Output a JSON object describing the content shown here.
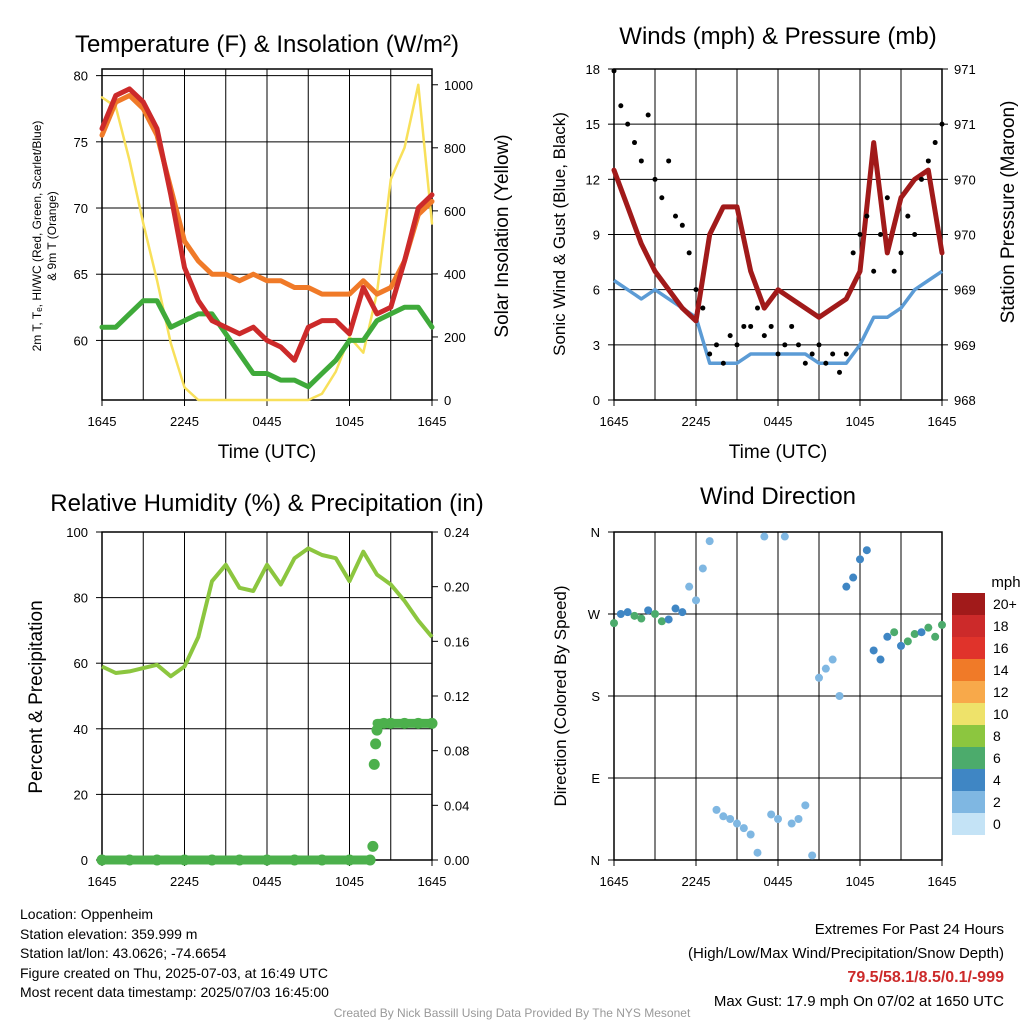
{
  "panels": {
    "temperature": {
      "title": "Temperature (F) & Insolation (W/m²)",
      "ylabel_left_line1": "2m T, Tₑ, HI/WC (Red, Green, Scarlet/Blue)",
      "ylabel_left_line2": "& 9m T (Orange)",
      "ylabel_right": "Solar Insolation (Yellow)",
      "xlabel": "Time (UTC)"
    },
    "winds": {
      "title": "Winds (mph) & Pressure (mb)",
      "ylabel_left": "Sonic Wind & Gust (Blue, Black)",
      "ylabel_right": "Station Pressure (Maroon)",
      "xlabel": "Time (UTC)"
    },
    "humidity": {
      "title": "Relative Humidity (%) & Precipitation (in)",
      "ylabel_left": "Percent & Precipitation"
    },
    "direction": {
      "title": "Wind Direction",
      "ylabel_left": "Direction (Colored By Speed)",
      "legend_title": "mph"
    }
  },
  "info": {
    "location": "Location: Oppenheim",
    "elevation": "Station elevation: 359.999 m",
    "latlon": "Station lat/lon: 43.0626; -74.6654",
    "created": "Figure created on Thu, 2025-07-03, at 16:49 UTC",
    "recent": "Most recent data timestamp: 2025/07/03 16:45:00"
  },
  "extremes": {
    "title": "Extremes For Past 24 Hours",
    "subtitle": "(High/Low/Max Wind/Precipitation/Snow Depth)",
    "values": "79.5/58.1/8.5/0.1/-999",
    "gust": "Max Gust: 17.9 mph On 07/02 at 1650 UTC"
  },
  "credit": "Created By Nick Bassill Using Data Provided By The NYS Mesonet",
  "colors": {
    "temp_2m": "#cc2a2a",
    "temp_9m": "#f07a28",
    "dewpoint": "#3faa3a",
    "insolation": "#f8e05a",
    "wind": "#5b9bd5",
    "gust": "#000000",
    "pressure": "#a11a1a",
    "humidity": "#8cc63f",
    "precip": "#4cb04c"
  },
  "chart_data": [
    {
      "id": "temperature",
      "type": "line",
      "x_ticks": [
        "1645",
        "2245",
        "0445",
        "1045",
        "1645"
      ],
      "x_range_hours": [
        0,
        24
      ],
      "y_ticks_left": [
        60,
        65,
        70,
        75,
        80
      ],
      "ylim_left": [
        55.5,
        80.5
      ],
      "y_ticks_right": [
        0,
        200,
        400,
        600,
        800,
        1000
      ],
      "ylim_right": [
        0,
        1050
      ],
      "series": [
        {
          "name": "T 2m",
          "axis": "left",
          "color": "#cc2a2a",
          "x": [
            0,
            1,
            2,
            3,
            4,
            5,
            6,
            7,
            8,
            9,
            10,
            11,
            12,
            13,
            14,
            15,
            16,
            17,
            18,
            19,
            20,
            21,
            22,
            23,
            24
          ],
          "values": [
            76,
            78.5,
            79,
            78,
            76,
            71,
            65.5,
            63,
            61.5,
            61,
            60.5,
            61,
            60,
            59.5,
            58.5,
            61,
            61.5,
            61.5,
            60.5,
            64,
            62,
            62.5,
            66,
            70,
            71
          ]
        },
        {
          "name": "T 9m",
          "axis": "left",
          "color": "#f07a28",
          "x": [
            0,
            1,
            2,
            3,
            4,
            5,
            6,
            7,
            8,
            9,
            10,
            11,
            12,
            13,
            14,
            15,
            16,
            17,
            18,
            19,
            20,
            21,
            22,
            23,
            24
          ],
          "values": [
            75.5,
            78,
            78.5,
            77.5,
            75.5,
            71.5,
            67.5,
            66,
            65,
            65,
            64.5,
            65,
            64.5,
            64.5,
            64,
            64,
            63.5,
            63.5,
            63.5,
            64.5,
            63.5,
            64,
            66,
            69.5,
            70.5
          ]
        },
        {
          "name": "Td",
          "axis": "left",
          "color": "#3faa3a",
          "x": [
            0,
            1,
            2,
            3,
            4,
            5,
            6,
            7,
            8,
            9,
            10,
            11,
            12,
            13,
            14,
            15,
            16,
            17,
            18,
            19,
            20,
            21,
            22,
            23,
            24
          ],
          "values": [
            61,
            61,
            62,
            63,
            63,
            61,
            61.5,
            62,
            62,
            60.5,
            59,
            57.5,
            57.5,
            57,
            57,
            56.5,
            57.5,
            58.5,
            60,
            60,
            61.5,
            62,
            62.5,
            62.5,
            61
          ]
        },
        {
          "name": "Insolation",
          "axis": "right",
          "color": "#f8e05a",
          "x": [
            0,
            1,
            2,
            3,
            4,
            5,
            6,
            7,
            8,
            9,
            10,
            11,
            12,
            13,
            14,
            15,
            16,
            17,
            18,
            19,
            20,
            21,
            22,
            23,
            24
          ],
          "values": [
            960,
            930,
            760,
            560,
            380,
            180,
            40,
            0,
            0,
            0,
            0,
            0,
            0,
            0,
            0,
            0,
            20,
            90,
            200,
            150,
            340,
            700,
            800,
            1000,
            560
          ]
        }
      ]
    },
    {
      "id": "winds",
      "type": "line",
      "x_ticks": [
        "1645",
        "2245",
        "0445",
        "1045",
        "1645"
      ],
      "x_range_hours": [
        0,
        24
      ],
      "y_ticks_left": [
        0,
        3,
        6,
        9,
        12,
        15,
        18
      ],
      "ylim_left": [
        0,
        18
      ],
      "y_ticks_right": [
        "968",
        "969",
        "969",
        "970",
        "970",
        "971",
        "971"
      ],
      "series": [
        {
          "name": "Sonic Wind",
          "axis": "left",
          "color": "#5b9bd5",
          "x": [
            0,
            1,
            2,
            3,
            4,
            5,
            6,
            7,
            8,
            9,
            10,
            11,
            12,
            13,
            14,
            15,
            16,
            17,
            18,
            19,
            20,
            21,
            22,
            23,
            24
          ],
          "values": [
            6.5,
            6,
            5.5,
            6,
            5.5,
            5,
            4.5,
            2,
            2,
            2,
            2.5,
            2.5,
            2.5,
            2.5,
            2.5,
            2,
            2,
            2,
            3,
            4.5,
            4.5,
            5,
            6,
            6.5,
            7
          ]
        },
        {
          "name": "Gust",
          "axis": "left",
          "color": "#000000",
          "type": "scatter",
          "x": [
            0,
            0.5,
            1,
            1.5,
            2,
            2.5,
            3,
            3.5,
            4,
            4.5,
            5,
            5.5,
            6,
            6.5,
            7,
            7.5,
            8,
            8.5,
            9,
            9.5,
            10,
            10.5,
            11,
            11.5,
            12,
            12.5,
            13,
            13.5,
            14,
            14.5,
            15,
            15.5,
            16,
            16.5,
            17,
            17.5,
            18,
            18.5,
            19,
            19.5,
            20,
            20.5,
            21,
            21.5,
            22,
            22.5,
            23,
            23.5,
            24
          ],
          "values": [
            17.9,
            16,
            15,
            14,
            13,
            15.5,
            12,
            11,
            13,
            10,
            9.5,
            8,
            6,
            5,
            2.5,
            3,
            2,
            3.5,
            3,
            4,
            4,
            5,
            3.5,
            4,
            2.5,
            3,
            4,
            3,
            2,
            2.5,
            3,
            2,
            2.5,
            1.5,
            2.5,
            8,
            9,
            10,
            7,
            9,
            11,
            7,
            8,
            10,
            9,
            12,
            13,
            14,
            15
          ]
        },
        {
          "name": "Station Pressure",
          "axis": "right_scaled",
          "color": "#a11a1a",
          "x": [
            0,
            1,
            2,
            3,
            4,
            5,
            6,
            7,
            8,
            9,
            10,
            11,
            12,
            13,
            14,
            15,
            16,
            17,
            18,
            19,
            20,
            21,
            22,
            23,
            24
          ],
          "values": [
            12.5,
            10.5,
            8.5,
            7,
            6,
            5,
            4.3,
            9,
            10.5,
            10.5,
            7,
            5,
            6,
            5.5,
            5,
            4.5,
            5,
            5.5,
            7,
            14,
            8,
            11,
            12,
            12.5,
            8
          ]
        }
      ]
    },
    {
      "id": "humidity",
      "type": "line",
      "x_ticks": [
        "1645",
        "2245",
        "0445",
        "1045",
        "1645"
      ],
      "x_range_hours": [
        0,
        24
      ],
      "y_ticks_left": [
        0,
        20,
        40,
        60,
        80,
        100
      ],
      "ylim_left": [
        0,
        100
      ],
      "y_ticks_right": [
        "0.00",
        "0.04",
        "0.08",
        "0.12",
        "0.16",
        "0.20",
        "0.24"
      ],
      "ylim_right": [
        0,
        0.24
      ],
      "series": [
        {
          "name": "RH",
          "axis": "left",
          "color": "#8cc63f",
          "x": [
            0,
            1,
            2,
            3,
            4,
            5,
            6,
            7,
            8,
            9,
            10,
            11,
            12,
            13,
            14,
            15,
            16,
            17,
            18,
            19,
            20,
            21,
            22,
            23,
            24
          ],
          "values": [
            59,
            57,
            57.5,
            58.5,
            59.5,
            56,
            59,
            68,
            85,
            90,
            83,
            82,
            90,
            84,
            92,
            95,
            93,
            92,
            85,
            94,
            87,
            84,
            79,
            73,
            68
          ]
        },
        {
          "name": "Precipitation",
          "axis": "right",
          "color": "#4cb04c",
          "type": "scatter",
          "x": [
            0,
            2,
            4,
            6,
            8,
            10,
            12,
            14,
            16,
            18,
            19.5,
            19.7,
            19.8,
            19.9,
            20,
            20.5,
            21,
            22,
            23,
            24
          ],
          "values": [
            0,
            0,
            0,
            0,
            0,
            0,
            0,
            0,
            0,
            0,
            0.0,
            0.01,
            0.07,
            0.085,
            0.095,
            0.1,
            0.1,
            0.1,
            0.1,
            0.1
          ]
        }
      ]
    },
    {
      "id": "direction",
      "type": "scatter",
      "x_ticks": [
        "1645",
        "2245",
        "0445",
        "1045",
        "1645"
      ],
      "x_range_hours": [
        0,
        24
      ],
      "y_ticks_left": [
        "N",
        "E",
        "S",
        "W",
        "N"
      ],
      "ylim_left": [
        0,
        360
      ],
      "legend": [
        "20+",
        "18",
        "16",
        "14",
        "12",
        "10",
        "8",
        "6",
        "4",
        "2",
        "0"
      ],
      "legend_colors": [
        "#a11a1a",
        "#cc2a2a",
        "#e0332b",
        "#f07a28",
        "#f8a94a",
        "#eee26a",
        "#8cc63f",
        "#4cab6c",
        "#3f86c4",
        "#7fb7e2",
        "#c4e3f6"
      ],
      "series": [
        {
          "name": "Direction",
          "x": [
            0,
            0.5,
            1,
            1.5,
            2,
            2.5,
            3,
            3.5,
            4,
            4.5,
            5,
            5.5,
            6,
            6.5,
            7,
            7.5,
            8,
            8.5,
            9,
            9.5,
            10,
            10.5,
            11,
            11.5,
            12,
            12.5,
            13,
            13.5,
            14,
            14.5,
            15,
            15.5,
            16,
            16.5,
            17,
            17.5,
            18,
            18.5,
            19,
            19.5,
            20,
            20.5,
            21,
            21.5,
            22,
            22.5,
            23,
            23.5,
            24
          ],
          "values": [
            260,
            270,
            272,
            268,
            265,
            274,
            270,
            262,
            264,
            276,
            272,
            300,
            285,
            320,
            350,
            55,
            48,
            45,
            40,
            35,
            28,
            8,
            355,
            50,
            45,
            355,
            40,
            45,
            60,
            5,
            200,
            210,
            220,
            180,
            300,
            310,
            330,
            340,
            230,
            220,
            245,
            250,
            235,
            240,
            248,
            250,
            255,
            245,
            258
          ],
          "speeds": [
            6,
            4,
            4,
            6,
            5,
            4,
            5,
            6,
            4,
            3,
            3,
            2,
            2,
            1,
            2,
            2,
            2,
            1,
            2,
            2,
            2,
            1,
            1,
            2,
            2,
            2,
            2,
            1,
            2,
            1,
            1,
            1,
            2,
            1,
            3,
            4,
            4,
            3,
            4,
            3,
            4,
            5,
            4,
            5,
            6,
            4,
            5,
            6,
            6
          ]
        }
      ]
    }
  ]
}
